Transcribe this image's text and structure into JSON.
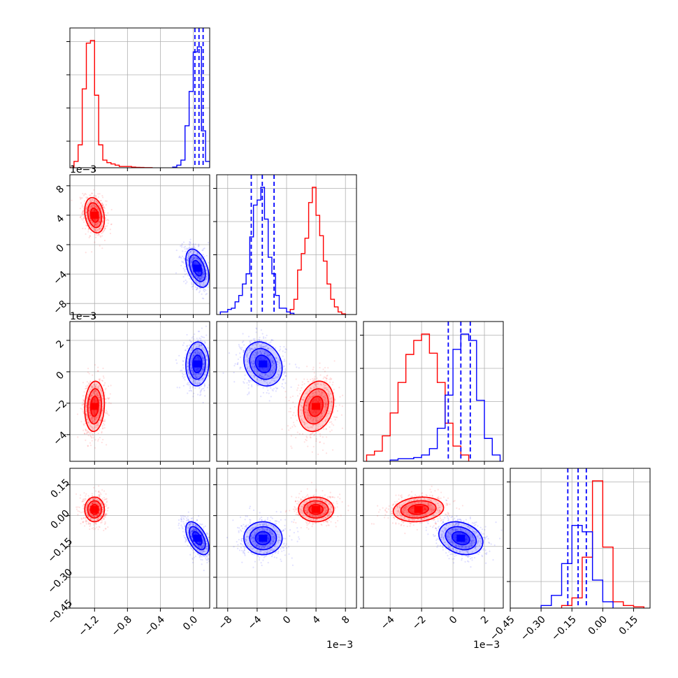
{
  "chart_data": {
    "type": "corner",
    "parameters": [
      {
        "xlim": [
          -1.5,
          0.2
        ],
        "xticks": [
          -1.2,
          -0.8,
          -0.4,
          0.0
        ],
        "xtick_labels": [
          "−1.2",
          "−0.8",
          "−0.4",
          "0.0"
        ],
        "offset_label": ""
      },
      {
        "xlim": [
          -0.0095,
          0.0095
        ],
        "xticks": [
          -0.008,
          -0.004,
          0,
          0.004,
          0.008
        ],
        "xtick_labels": [
          "−8",
          "−4",
          "0",
          "4",
          "8"
        ],
        "yticks": [
          -0.008,
          -0.004,
          0,
          0.004,
          0.008
        ],
        "ytick_labels": [
          "−8",
          "−4",
          "0",
          "4",
          "8"
        ],
        "offset_label": "1e−3"
      },
      {
        "xlim": [
          -0.0057,
          0.0032
        ],
        "xticks": [
          -0.004,
          -0.002,
          0,
          0.002
        ],
        "xtick_labels": [
          "−4",
          "−2",
          "0",
          "2"
        ],
        "yticks": [
          -0.004,
          -0.002,
          0,
          0.002
        ],
        "ytick_labels": [
          "−4",
          "−2",
          "0",
          "2"
        ],
        "offset_label": "1e−3"
      },
      {
        "xlim": [
          -0.45,
          0.23
        ],
        "xticks": [
          -0.45,
          -0.3,
          -0.15,
          0.0,
          0.15
        ],
        "xtick_labels": [
          "−0.45",
          "−0.30",
          "−0.15",
          "0.00",
          "0.15"
        ],
        "yticks": [
          -0.45,
          -0.3,
          -0.15,
          0.0,
          0.15
        ],
        "ytick_labels": [
          "−0.45",
          "−0.30",
          "−0.15",
          "0.00",
          "0.15"
        ],
        "offset_label": ""
      }
    ],
    "series": [
      {
        "color": "#ff0000",
        "mean": [
          -1.2,
          0.004,
          -0.0022,
          0.03
        ],
        "sd": [
          0.06,
          0.0012,
          0.0008,
          0.03
        ],
        "corr": [
          [
            0,
            1,
            -0.25
          ],
          [
            0,
            2,
            0.1
          ],
          [
            0,
            3,
            0.0
          ],
          [
            1,
            2,
            0.2
          ],
          [
            1,
            3,
            0.0
          ],
          [
            2,
            3,
            0.15
          ]
        ],
        "hists": [
          {
            "edges": [
              -1.5,
              -1.45,
              -1.4,
              -1.35,
              -1.3,
              -1.25,
              -1.2,
              -1.15,
              -1.1,
              -1.05,
              -1.0,
              -0.95,
              -0.9,
              -0.85,
              -0.8,
              -0.75,
              -0.7,
              -0.65,
              -0.6,
              -0.55,
              -0.5
            ],
            "counts": [
              0,
              0.05,
              0.18,
              0.62,
              0.98,
              1.0,
              0.57,
              0.18,
              0.06,
              0.04,
              0.03,
              0.02,
              0.01,
              0.01,
              0.01,
              0.005,
              0.003,
              0.002,
              0.001,
              0.001
            ]
          },
          {
            "edges": [
              0.0005,
              0.001,
              0.0015,
              0.002,
              0.0025,
              0.003,
              0.0035,
              0.004,
              0.0045,
              0.005,
              0.0055,
              0.006,
              0.0065,
              0.007,
              0.0075,
              0.008
            ],
            "counts": [
              0.04,
              0.12,
              0.35,
              0.48,
              0.6,
              0.88,
              1.0,
              0.78,
              0.62,
              0.42,
              0.24,
              0.12,
              0.06,
              0.02,
              0.005
            ]
          },
          {
            "edges": [
              -0.0055,
              -0.005,
              -0.0045,
              -0.004,
              -0.0035,
              -0.003,
              -0.0025,
              -0.002,
              -0.0015,
              -0.001,
              -0.0005,
              0.0,
              0.0005,
              0.001
            ],
            "counts": [
              0.05,
              0.08,
              0.2,
              0.38,
              0.62,
              0.84,
              0.95,
              1.0,
              0.85,
              0.62,
              0.3,
              0.12,
              0.05
            ]
          },
          {
            "edges": [
              -0.2,
              -0.15,
              -0.1,
              -0.05,
              0.0,
              0.05,
              0.1,
              0.15,
              0.2
            ],
            "counts": [
              0.02,
              0.08,
              0.4,
              1.0,
              0.48,
              0.05,
              0.02,
              0.01
            ]
          }
        ]
      },
      {
        "color": "#0000ff",
        "mean": [
          0.05,
          -0.0032,
          0.0005,
          -0.11
        ],
        "sd": [
          0.07,
          0.0013,
          0.0007,
          0.04
        ],
        "corr": [
          [
            0,
            1,
            -0.45
          ],
          [
            0,
            2,
            0.05
          ],
          [
            0,
            3,
            -0.55
          ],
          [
            1,
            2,
            -0.2
          ],
          [
            1,
            3,
            0.0
          ],
          [
            2,
            3,
            -0.25
          ]
        ],
        "quantiles": [
          [
            0.02,
            0.07,
            0.12
          ],
          [
            -0.0048,
            -0.0033,
            -0.0017
          ],
          [
            -0.0003,
            0.0005,
            0.0011
          ],
          [
            -0.17,
            -0.12,
            -0.08
          ]
        ],
        "hists": [
          {
            "edges": [
              -0.25,
              -0.2,
              -0.15,
              -0.1,
              -0.05,
              0.0,
              0.05,
              0.1,
              0.15,
              0.2
            ],
            "counts": [
              0.005,
              0.02,
              0.06,
              0.33,
              0.6,
              0.91,
              0.95,
              0.29,
              0.05
            ]
          },
          {
            "edges": [
              -0.009,
              -0.008,
              -0.0075,
              -0.007,
              -0.0065,
              -0.006,
              -0.0055,
              -0.005,
              -0.0045,
              -0.004,
              -0.0035,
              -0.003,
              -0.0025,
              -0.002,
              -0.0015,
              -0.001,
              -0.0005,
              0.0,
              0.0005,
              0.001
            ],
            "counts": [
              0.02,
              0.04,
              0.05,
              0.1,
              0.15,
              0.24,
              0.32,
              0.61,
              0.86,
              0.9,
              1.0,
              0.75,
              0.45,
              0.32,
              0.15,
              0.05,
              0.05,
              0.02,
              0.01
            ]
          },
          {
            "edges": [
              -0.004,
              -0.0035,
              -0.003,
              -0.0025,
              -0.002,
              -0.0015,
              -0.001,
              -0.0005,
              0.0,
              0.0005,
              0.001,
              0.0015,
              0.002,
              0.0025,
              0.003
            ],
            "counts": [
              0.01,
              0.02,
              0.02,
              0.03,
              0.05,
              0.1,
              0.26,
              0.52,
              0.88,
              1.0,
              0.95,
              0.48,
              0.18,
              0.05
            ]
          },
          {
            "edges": [
              -0.3,
              -0.25,
              -0.2,
              -0.15,
              -0.1,
              -0.05,
              0.0,
              0.05
            ],
            "counts": [
              0.02,
              0.1,
              0.35,
              0.65,
              0.6,
              0.22,
              0.05
            ]
          }
        ]
      }
    ],
    "grid": true,
    "quantile_lines": "dashed"
  }
}
